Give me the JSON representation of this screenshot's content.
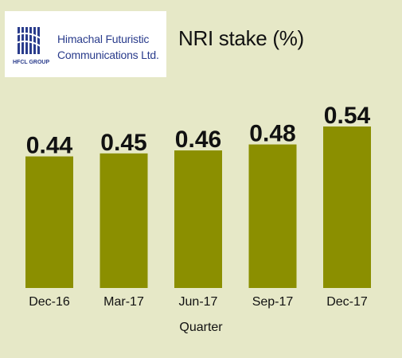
{
  "logo": {
    "company_name_line1": "Himachal Futuristic",
    "company_name_line2": "Communications Ltd.",
    "logo_text": "HFCL GROUP",
    "brand_color": "#2a3c8c"
  },
  "chart_data": {
    "type": "bar",
    "title": "NRI stake (%)",
    "xlabel": "Quarter",
    "ylabel": "",
    "categories": [
      "Dec-16",
      "Mar-17",
      "Jun-17",
      "Sep-17",
      "Dec-17"
    ],
    "values": [
      0.44,
      0.45,
      0.46,
      0.48,
      0.54
    ],
    "data_labels": [
      "0.44",
      "0.45",
      "0.46",
      "0.48",
      "0.54"
    ],
    "ylim": [
      0,
      0.54
    ],
    "grid": false,
    "legend": "none",
    "bar_color": "#8b8f00",
    "background_color": "#e6e8c7"
  }
}
